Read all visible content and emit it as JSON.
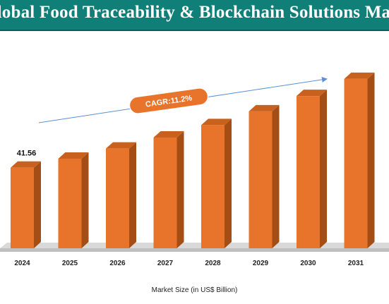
{
  "chart_data": {
    "type": "bar",
    "title": "Global Food Traceability & Blockchain Solutions Market",
    "xlabel": "Market Size (in US$ Billion)",
    "ylabel": "",
    "categories": [
      "2024",
      "2025",
      "2026",
      "2027",
      "2028",
      "2029",
      "2030",
      "2031"
    ],
    "values": [
      41.56,
      46.2,
      51.4,
      57.1,
      63.5,
      70.6,
      78.5,
      87.3
    ],
    "data_labels": [
      "41.56",
      "",
      "",
      "",
      "",
      "",
      "",
      ""
    ],
    "annotation": "CAGR:11.2%",
    "ylim": [
      0,
      100
    ],
    "colors": {
      "bar_front": "#e8742b",
      "bar_side": "#a44e15",
      "bar_top": "#c9611e",
      "floor": "#bfbfbf",
      "title_bg": "#0f7f78",
      "arrow": "#5b8fd6",
      "cagr_pill": "#e8742b"
    }
  }
}
